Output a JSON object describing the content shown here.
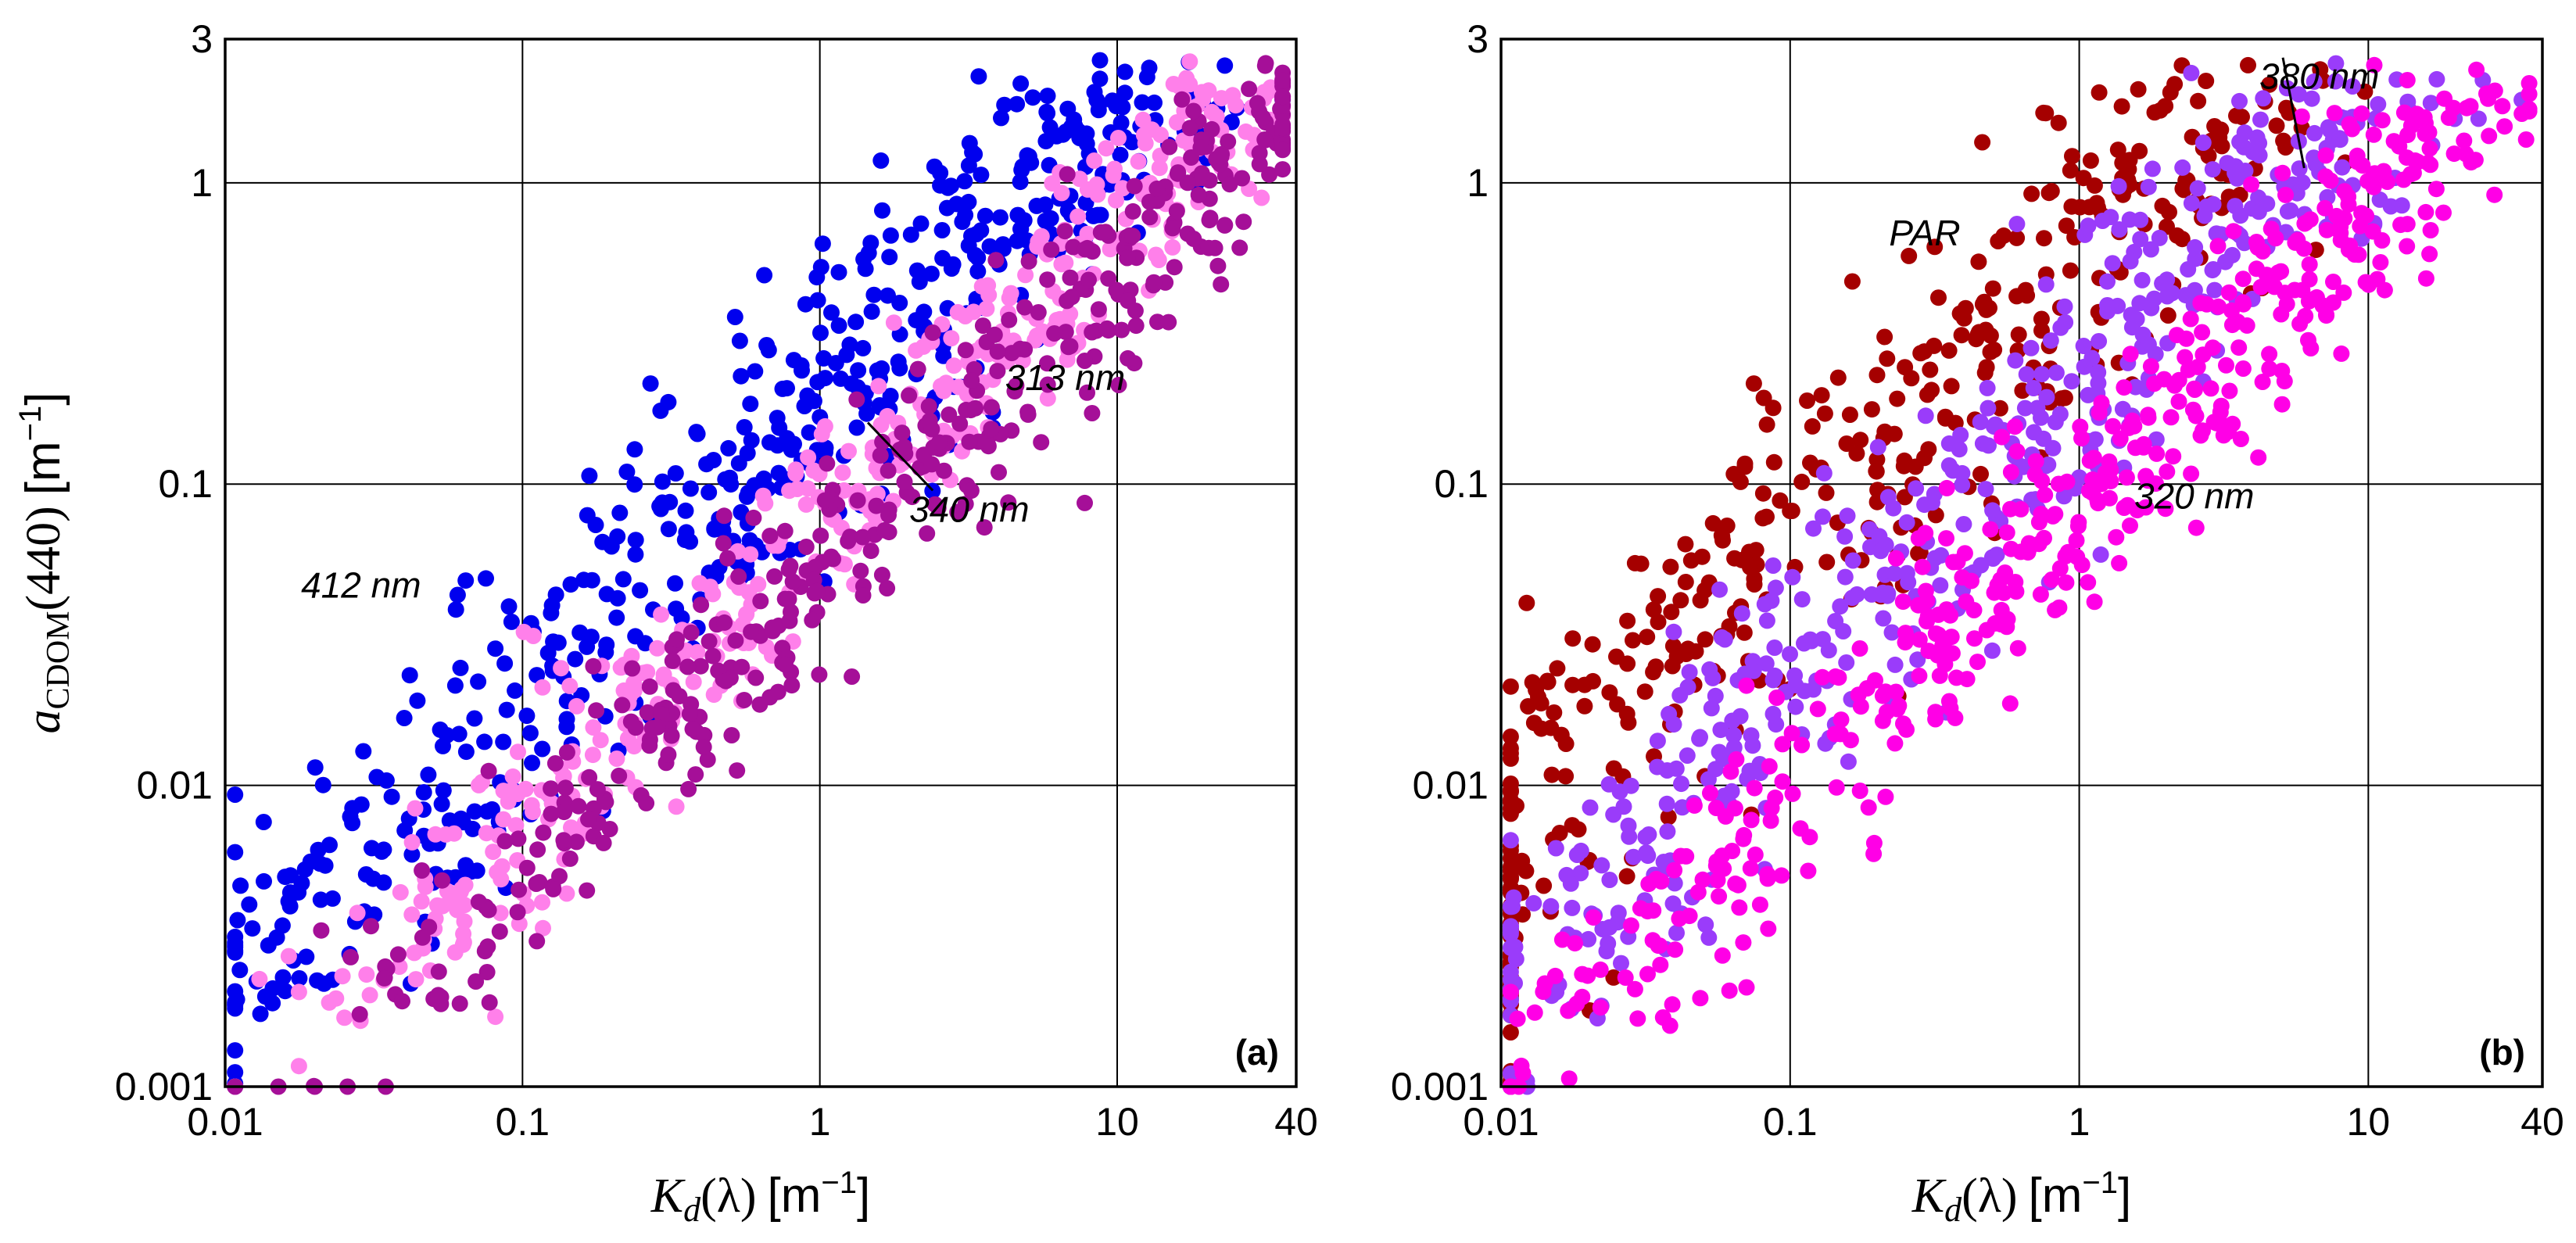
{
  "chart_data": [
    {
      "type": "scatter",
      "panel_label": "(a)",
      "x_scale": "log",
      "y_scale": "log",
      "xlim": [
        0.01,
        40
      ],
      "ylim": [
        0.001,
        3
      ],
      "x_ticks": [
        {
          "value": 0.01,
          "label": "0.01"
        },
        {
          "value": 0.1,
          "label": "0.1"
        },
        {
          "value": 1,
          "label": "1"
        },
        {
          "value": 10,
          "label": "10"
        },
        {
          "value": 40,
          "label": "40"
        }
      ],
      "y_ticks": [
        {
          "value": 0.001,
          "label": "0.001"
        },
        {
          "value": 0.01,
          "label": "0.01"
        },
        {
          "value": 0.1,
          "label": "0.1"
        },
        {
          "value": 1,
          "label": "1"
        },
        {
          "value": 3,
          "label": "3"
        }
      ],
      "grid": true,
      "xlabel": {
        "symbol": "K",
        "subscript": "d",
        "arg": "(λ)",
        "unit_open": "[m",
        "unit_exp": "−1",
        "unit_close": "]"
      },
      "ylabel": {
        "symbol": "a",
        "subscript": "CDOM",
        "arg": "(440)",
        "unit_open": "[m",
        "unit_exp": "−1",
        "unit_close": "]"
      },
      "series": [
        {
          "name": "412 nm",
          "color": "#0000ee",
          "kd_ratio": 5.5,
          "spread": 0.25,
          "n": 520,
          "annotation": {
            "text": "412 nm",
            "x": 0.018,
            "y": 0.042,
            "line_to": null
          }
        },
        {
          "name": "340 nm",
          "color": "#ff80ea",
          "kd_ratio": 13.5,
          "spread": 0.17,
          "n": 420,
          "annotation": {
            "text": "340 nm",
            "x": 2.0,
            "y": 0.075,
            "line_to": {
              "x": 1.45,
              "y": 0.16
            }
          }
        },
        {
          "name": "313 nm",
          "color": "#a50f98",
          "kd_ratio": 20,
          "spread": 0.17,
          "n": 420,
          "annotation": {
            "text": "313 nm",
            "x": 4.2,
            "y": 0.205,
            "line_to": null
          }
        }
      ]
    },
    {
      "type": "scatter",
      "panel_label": "(b)",
      "x_scale": "log",
      "y_scale": "log",
      "xlim": [
        0.01,
        40
      ],
      "ylim": [
        0.001,
        3
      ],
      "x_ticks": [
        {
          "value": 0.01,
          "label": "0.01"
        },
        {
          "value": 0.1,
          "label": "0.1"
        },
        {
          "value": 1,
          "label": "1"
        },
        {
          "value": 10,
          "label": "10"
        },
        {
          "value": 40,
          "label": "40"
        }
      ],
      "y_ticks": [
        {
          "value": 0.001,
          "label": "0.001"
        },
        {
          "value": 0.01,
          "label": "0.01"
        },
        {
          "value": 0.1,
          "label": "0.1"
        },
        {
          "value": 1,
          "label": "1"
        },
        {
          "value": 3,
          "label": "3"
        }
      ],
      "grid": true,
      "xlabel": {
        "symbol": "K",
        "subscript": "d",
        "arg": "(λ)",
        "unit_open": "[m",
        "unit_exp": "−1",
        "unit_close": "]"
      },
      "ylabel": null,
      "series": [
        {
          "name": "PAR",
          "color": "#a50000",
          "kd_ratio": 1.7,
          "spread": 0.3,
          "n": 420,
          "annotation": {
            "text": "PAR",
            "x": 0.22,
            "y": 0.62,
            "line_to": null
          }
        },
        {
          "name": "380 nm",
          "color": "#9a3cfa",
          "kd_ratio": 4.6,
          "spread": 0.25,
          "n": 470,
          "annotation": {
            "text": "380 nm",
            "x": 4.2,
            "y": 2.05,
            "line_to": {
              "x": 6.0,
              "y": 1.12
            }
          }
        },
        {
          "name": "320 nm",
          "color": "#ff00e6",
          "kd_ratio": 11.5,
          "spread": 0.2,
          "n": 470,
          "annotation": {
            "text": "320 nm",
            "x": 1.55,
            "y": 0.083,
            "line_to": null
          }
        }
      ]
    }
  ]
}
